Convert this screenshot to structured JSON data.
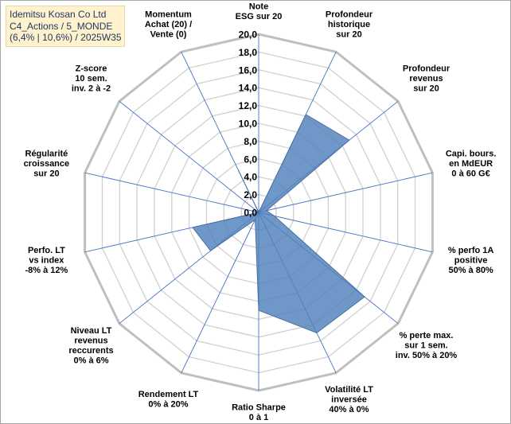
{
  "title_box": {
    "lines": [
      "Idemitsu Kosan Co Ltd",
      "C4_Actions / 5_MONDE",
      "(6,4% | 10,6%) / 2025W35"
    ]
  },
  "chart_data": {
    "type": "radar",
    "title": "Idemitsu Kosan Co Ltd",
    "r_min": 0,
    "r_max": 20,
    "r_step": 2,
    "ticks": [
      "0,0",
      "2,0",
      "4,0",
      "6,0",
      "8,0",
      "10,0",
      "12,0",
      "14,0",
      "16,0",
      "18,0",
      "20,0"
    ],
    "grid": true,
    "series": [
      {
        "color": "#4f81bd",
        "values": [
          0.0,
          12.2,
          13.0,
          0.9,
          1.8,
          15.2,
          15.0,
          11.0,
          0.9,
          6.9,
          7.6,
          0.0,
          0.0,
          5.3
        ]
      }
    ],
    "categories": [
      [
        "Note",
        "ESG sur 20"
      ],
      [
        "Profondeur",
        "historique",
        "sur 20"
      ],
      [
        "Profondeur",
        "revenus",
        "sur 20"
      ],
      [
        "Capi. bours.",
        "en MdEUR",
        "0 à 60 G€"
      ],
      [
        "% perfo 1A",
        "positive",
        "50% à 80%"
      ],
      [
        "% perte max.",
        "sur 1 sem.",
        "inv. 50% à 20%"
      ],
      [
        "Volatilité LT",
        "inversée",
        "40% à 0%"
      ],
      [
        "Ratio Sharpe",
        "0 à 1"
      ],
      [
        "Rendement LT",
        "0% à 20%"
      ],
      [
        "Niveau LT",
        "revenus",
        "reccurents",
        "0% à 6%"
      ],
      [
        "Perfo. LT",
        "vs index",
        "-8% à 12%"
      ],
      [
        "Régularité",
        "croissance",
        "sur 20"
      ],
      [
        "Z-score",
        "10 sem.",
        "inv. 2 à -2"
      ],
      [
        "Momentum",
        "Achat (20) /",
        "Vente (0)"
      ]
    ]
  }
}
